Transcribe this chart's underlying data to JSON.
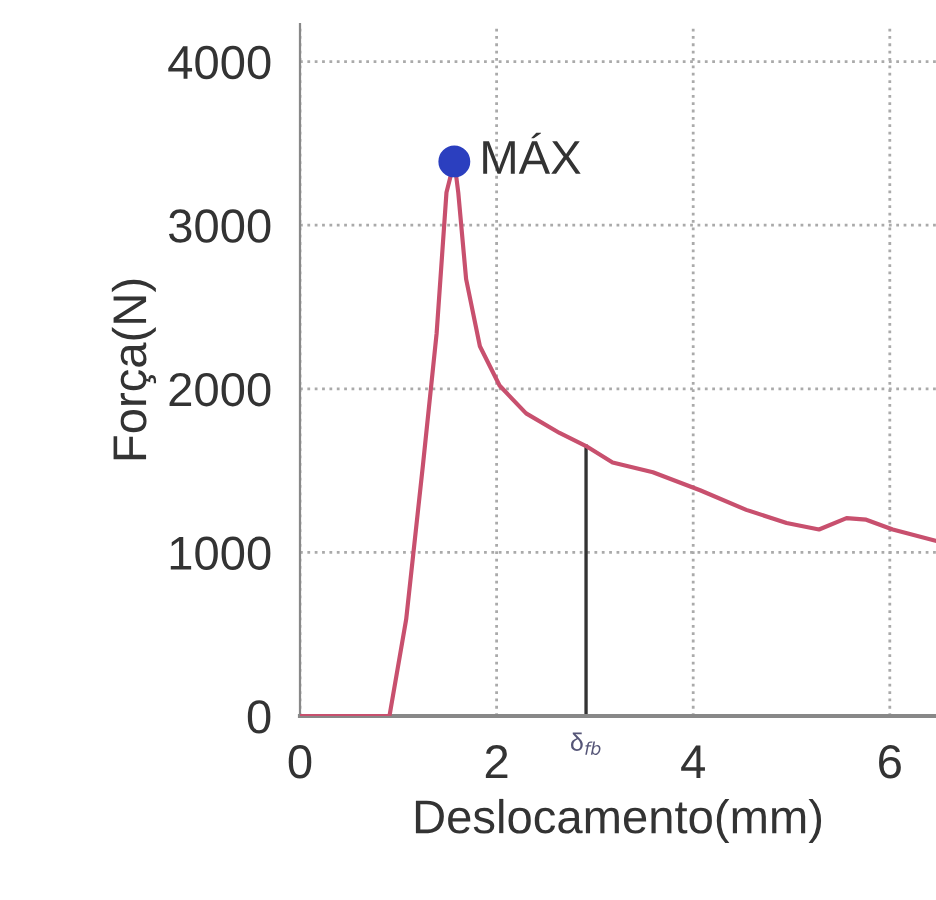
{
  "chart_data": {
    "type": "line",
    "xlabel": "Deslocamento(mm)",
    "ylabel": "Força(N)",
    "xlim": [
      0,
      6.47
    ],
    "ylim": [
      0,
      4230
    ],
    "xticks": [
      0,
      2,
      4,
      6
    ],
    "yticks": [
      0,
      1000,
      2000,
      3000,
      4000
    ],
    "grid": true,
    "series": [
      {
        "color": "#c8506e",
        "x": [
          0,
          0.91,
          1.08,
          1.25,
          1.39,
          1.49,
          1.57,
          1.61,
          1.69,
          1.83,
          2.03,
          2.3,
          2.64,
          2.91,
          3.18,
          3.59,
          4.07,
          4.54,
          4.95,
          5.28,
          5.56,
          5.76,
          6.03,
          6.47
        ],
        "values": [
          0,
          0,
          590,
          1530,
          2340,
          3200,
          3390,
          3200,
          2670,
          2260,
          2020,
          1850,
          1730,
          1650,
          1550,
          1490,
          1380,
          1260,
          1180,
          1140,
          1210,
          1200,
          1140,
          1070
        ]
      },
      {
        "type": "scatter",
        "color": "#2b3fbf",
        "x": [
          1.57
        ],
        "values": [
          3390
        ]
      }
    ],
    "annotations": [
      {
        "text": "MÁX",
        "x": 1.57,
        "y": 3390
      }
    ],
    "ref_lines": [
      {
        "axis": "x",
        "value": 2.91,
        "label": "δ$_{fb}$",
        "color": "#333333"
      }
    ]
  }
}
